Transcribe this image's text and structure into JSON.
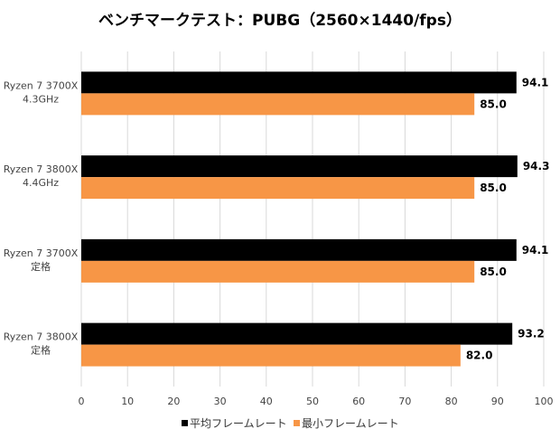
{
  "chart_data": {
    "type": "bar",
    "orientation": "horizontal",
    "title": "ベンチマークテスト：PUBG（2560×1440/fps）",
    "categories": [
      [
        "Ryzen 7 3700X",
        "4.3GHz"
      ],
      [
        "Ryzen 7 3800X",
        "4.4GHz"
      ],
      [
        "Ryzen 7 3700X",
        "定格"
      ],
      [
        "Ryzen 7 3800X",
        "定格"
      ]
    ],
    "series": [
      {
        "name": "平均フレームレート",
        "color": "#000000",
        "values": [
          94.1,
          94.3,
          94.1,
          93.2
        ],
        "labels": [
          "94.1",
          "94.3",
          "94.1",
          "93.2"
        ]
      },
      {
        "name": "最小フレームレート",
        "color": "#f79646",
        "values": [
          85.0,
          85.0,
          85.0,
          82.0
        ],
        "labels": [
          "85.0",
          "85.0",
          "85.0",
          "82.0"
        ]
      }
    ],
    "xlim": [
      0,
      100
    ],
    "xticks": [
      0,
      10,
      20,
      30,
      40,
      50,
      60,
      70,
      80,
      90,
      100
    ],
    "grid": "vertical",
    "legend_position": "bottom"
  }
}
